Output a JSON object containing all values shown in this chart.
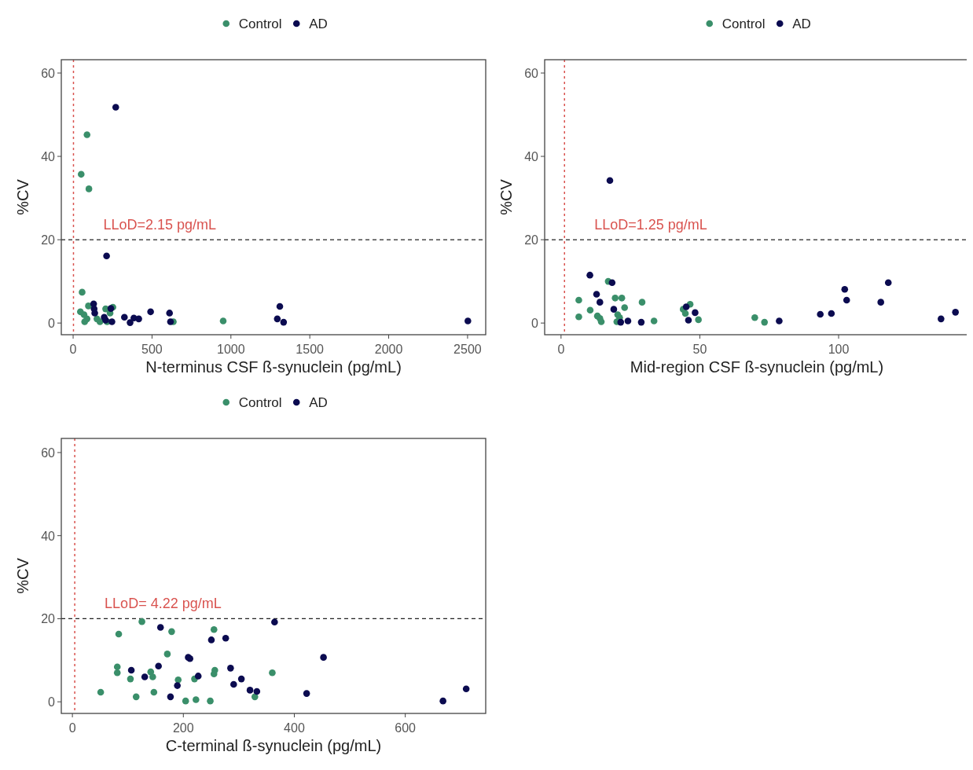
{
  "chart_data": [
    {
      "type": "scatter",
      "xlabel": "N-terminus CSF ß-synuclein (pg/mL)",
      "ylabel": "%CV",
      "xlim": [
        -75,
        2615
      ],
      "xticks": [
        0,
        500,
        1000,
        1500,
        2000,
        2500
      ],
      "ylim": [
        -2.8,
        63.2
      ],
      "yticks": [
        0,
        20,
        40,
        60
      ],
      "legend": "top",
      "marker": "circle",
      "ref_lines": [
        {
          "axis": "x",
          "value": 2.15,
          "color": "#d9534f",
          "line_style": "dotted",
          "label": "LLoD=2.15 pg/mL"
        },
        {
          "axis": "y",
          "value": 20,
          "color": "#222222",
          "line_style": "dashed"
        }
      ],
      "series": [
        {
          "name": "Control",
          "color": "#3a8f6a",
          "x": [
            88,
            51,
            100,
            57,
            46,
            69,
            73,
            88,
            97,
            151,
            170,
            206,
            252,
            234,
            215,
            635,
            951
          ],
          "values": [
            45.2,
            35.7,
            32.2,
            7.4,
            2.7,
            2.0,
            0.3,
            1.0,
            4.1,
            1.0,
            0.3,
            3.4,
            3.8,
            2.4,
            0.3,
            0.3,
            0.5
          ]
        },
        {
          "name": "AD",
          "color": "#0b0b50",
          "x": [
            270,
            212,
            130,
            133,
            137,
            197,
            246,
            239,
            325,
            361,
            385,
            416,
            491,
            611,
            617,
            1310,
            1294,
            1334,
            2502,
            206
          ],
          "values": [
            51.8,
            16.1,
            4.6,
            3.4,
            2.4,
            1.4,
            0.3,
            3.5,
            1.4,
            0.1,
            1.2,
            1.0,
            2.7,
            2.4,
            0.3,
            4.0,
            1.0,
            0.2,
            0.5,
            0.7
          ]
        }
      ]
    },
    {
      "type": "scatter",
      "xlabel": "Mid-region CSF ß-synuclein (pg/mL)",
      "ylabel": "%CV",
      "xlim": [
        -5.9,
        147
      ],
      "xticks": [
        0,
        50,
        100
      ],
      "ylim": [
        -2.8,
        63.2
      ],
      "yticks": [
        0,
        20,
        40,
        60
      ],
      "legend": "top",
      "marker": "circle",
      "ref_lines": [
        {
          "axis": "x",
          "value": 1.25,
          "color": "#d9534f",
          "line_style": "dotted",
          "label": "LLoD=1.25 pg/mL"
        },
        {
          "axis": "y",
          "value": 20,
          "color": "#222222",
          "line_style": "dashed"
        }
      ],
      "series": [
        {
          "name": "Control",
          "color": "#3a8f6a",
          "x": [
            17.0,
            6.4,
            6.4,
            10.5,
            13.1,
            14.0,
            14.5,
            19.5,
            21.9,
            22.9,
            20.4,
            21.1,
            20.1,
            29.2,
            33.5,
            44.0,
            46.5,
            44.8,
            49.5,
            69.8,
            73.3
          ],
          "values": [
            10.0,
            5.5,
            1.5,
            3.1,
            1.7,
            1.1,
            0.3,
            6.0,
            6.0,
            3.7,
            2.0,
            1.3,
            0.3,
            5.0,
            0.5,
            3.3,
            4.5,
            2.3,
            0.8,
            1.3,
            0.2
          ]
        },
        {
          "name": "AD",
          "color": "#0b0b50",
          "x": [
            17.6,
            10.4,
            18.4,
            12.8,
            14.0,
            19.0,
            21.5,
            24.1,
            28.9,
            45.1,
            48.3,
            45.9,
            78.6,
            93.4,
            97.4,
            102.2,
            102.9,
            115.2,
            117.9,
            136.9,
            142.1
          ],
          "values": [
            34.2,
            11.5,
            9.7,
            6.9,
            5.0,
            3.3,
            0.2,
            0.5,
            0.2,
            3.9,
            2.5,
            0.7,
            0.5,
            2.1,
            2.3,
            8.1,
            5.5,
            5.0,
            9.7,
            1.0,
            2.6
          ]
        }
      ]
    },
    {
      "type": "scatter",
      "xlabel": "C-terminal ß-synuclein (pg/mL)",
      "ylabel": "%CV",
      "xlim": [
        -20,
        745
      ],
      "xticks": [
        0,
        200,
        400,
        600
      ],
      "ylim": [
        -2.8,
        63.4
      ],
      "yticks": [
        0,
        20,
        40,
        60
      ],
      "legend": "top",
      "marker": "circle",
      "ref_lines": [
        {
          "axis": "x",
          "value": 4.22,
          "color": "#d9534f",
          "line_style": "dotted",
          "label": "LLoD= 4.22 pg/mL"
        },
        {
          "axis": "y",
          "value": 20,
          "color": "#222222",
          "line_style": "dashed"
        }
      ],
      "series": [
        {
          "name": "Control",
          "color": "#3a8f6a",
          "x": [
            125.3,
            83.5,
            178.9,
            255.2,
            171.1,
            80.9,
            80.9,
            141.2,
            144.8,
            104.6,
            190.7,
            220.1,
            256.7,
            255.2,
            360.3,
            51.0,
            114.9,
            146.9,
            204.1,
            222.7,
            248.5,
            328.9
          ],
          "values": [
            19.3,
            16.3,
            16.9,
            17.4,
            11.5,
            8.4,
            7.0,
            7.2,
            6.0,
            5.5,
            5.3,
            5.5,
            7.6,
            6.7,
            7.0,
            2.3,
            1.2,
            2.3,
            0.2,
            0.5,
            0.2,
            1.2
          ]
        },
        {
          "name": "AD",
          "color": "#0b0b50",
          "x": [
            158.8,
            250.5,
            276.3,
            364.4,
            452.6,
            208.8,
            211.9,
            106.2,
            130.4,
            155.2,
            226.8,
            285.1,
            304.6,
            290.7,
            189.2,
            176.8,
            320.1,
            332.5,
            422.2,
            668,
            709.8
          ],
          "values": [
            17.9,
            14.9,
            15.3,
            19.2,
            10.7,
            10.7,
            10.4,
            7.6,
            6.0,
            8.6,
            6.2,
            8.1,
            5.5,
            4.2,
            3.9,
            1.2,
            2.8,
            2.5,
            2.0,
            0.2,
            3.1
          ]
        }
      ]
    }
  ]
}
